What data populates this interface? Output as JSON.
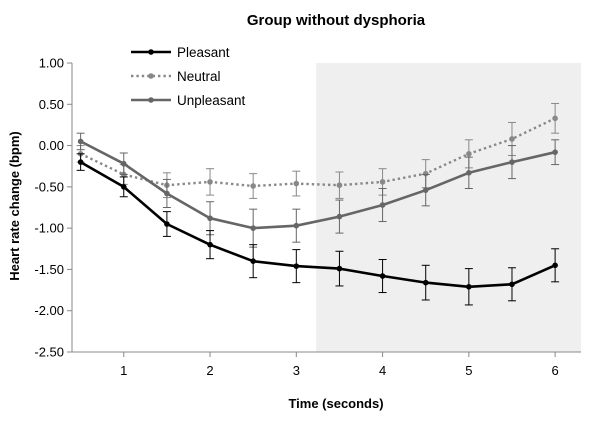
{
  "chart_data": {
    "type": "line",
    "title": "Group without dysphoria",
    "xlabel": "Time (seconds)",
    "ylabel": "Heart rate change (bpm)",
    "x": [
      0.5,
      1,
      1.5,
      2,
      2.5,
      3,
      3.5,
      4,
      4.5,
      5,
      5.5,
      6
    ],
    "xlim": [
      0.4,
      6.3
    ],
    "ylim": [
      -2.5,
      1.0
    ],
    "xticks": [
      "1",
      "2",
      "3",
      "4",
      "5",
      "6"
    ],
    "xtick_values": [
      1,
      2,
      3,
      4,
      5,
      6
    ],
    "yticks": [
      "1.00",
      "0.50",
      "0.00",
      "-0.50",
      "-1.00",
      "-1.50",
      "-2.00",
      "-2.50"
    ],
    "ytick_values": [
      1.0,
      0.5,
      0.0,
      -0.5,
      -1.0,
      -1.5,
      -2.0,
      -2.5
    ],
    "shaded_region": {
      "x_start": 3.23,
      "x_end": 6.3,
      "color": "#efefef"
    },
    "legend_position": "top-left",
    "series": [
      {
        "name": "Pleasant",
        "color": "#000000",
        "style": "solid",
        "values": [
          -0.2,
          -0.5,
          -0.95,
          -1.2,
          -1.4,
          -1.46,
          -1.49,
          -1.58,
          -1.66,
          -1.71,
          -1.68,
          -1.45
        ],
        "errors": [
          0.1,
          0.12,
          0.15,
          0.17,
          0.2,
          0.2,
          0.21,
          0.2,
          0.21,
          0.22,
          0.2,
          0.2
        ]
      },
      {
        "name": "Neutral",
        "color": "#888888",
        "style": "dotted",
        "values": [
          -0.1,
          -0.35,
          -0.48,
          -0.44,
          -0.49,
          -0.46,
          -0.48,
          -0.44,
          -0.34,
          -0.1,
          0.08,
          0.33
        ],
        "errors": [
          0.1,
          0.12,
          0.15,
          0.16,
          0.15,
          0.15,
          0.16,
          0.16,
          0.17,
          0.17,
          0.2,
          0.18
        ]
      },
      {
        "name": "Unpleasant",
        "color": "#666666",
        "style": "solid",
        "values": [
          0.05,
          -0.22,
          -0.58,
          -0.88,
          -1.0,
          -0.97,
          -0.86,
          -0.72,
          -0.54,
          -0.33,
          -0.2,
          -0.08
        ],
        "errors": [
          0.1,
          0.13,
          0.17,
          0.2,
          0.23,
          0.2,
          0.2,
          0.2,
          0.19,
          0.19,
          0.2,
          0.15
        ]
      }
    ]
  }
}
